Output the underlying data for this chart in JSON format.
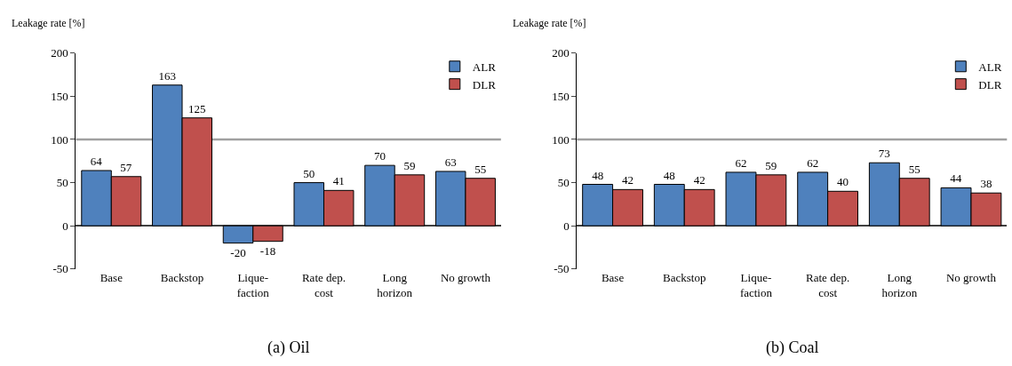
{
  "chart_data": [
    {
      "type": "bar",
      "title": "(a) Oil",
      "ylabel": "Leakage rate [%]",
      "categories": [
        "Base",
        "Backstop",
        "Lique-\nfaction",
        "Rate dep.\ncost",
        "Long\nhorizon",
        "No growth"
      ],
      "series": [
        {
          "name": "ALR",
          "color": "#4f81bd",
          "values": [
            64,
            163,
            -20,
            50,
            70,
            63
          ]
        },
        {
          "name": "DLR",
          "color": "#c0504d",
          "values": [
            57,
            125,
            -18,
            41,
            59,
            55
          ]
        }
      ],
      "ylim": [
        -50,
        200
      ],
      "yticks": [
        -50,
        0,
        50,
        100,
        150,
        200
      ],
      "grid": false,
      "legend": "top right",
      "data_labels": true,
      "ref_lines": [
        {
          "axis": "y",
          "value": 100,
          "color": "#a0a0a0"
        }
      ]
    },
    {
      "type": "bar",
      "title": "(b) Coal",
      "ylabel": "Leakage rate [%]",
      "categories": [
        "Base",
        "Backstop",
        "Lique-\nfaction",
        "Rate dep.\ncost",
        "Long\nhorizon",
        "No growth"
      ],
      "series": [
        {
          "name": "ALR",
          "color": "#4f81bd",
          "values": [
            48,
            48,
            62,
            62,
            73,
            44
          ]
        },
        {
          "name": "DLR",
          "color": "#c0504d",
          "values": [
            42,
            42,
            59,
            40,
            55,
            38
          ]
        }
      ],
      "ylim": [
        -50,
        200
      ],
      "yticks": [
        -50,
        0,
        50,
        100,
        150,
        200
      ],
      "grid": false,
      "legend": "top right",
      "data_labels": true,
      "ref_lines": [
        {
          "axis": "y",
          "value": 100,
          "color": "#a0a0a0"
        }
      ]
    }
  ]
}
